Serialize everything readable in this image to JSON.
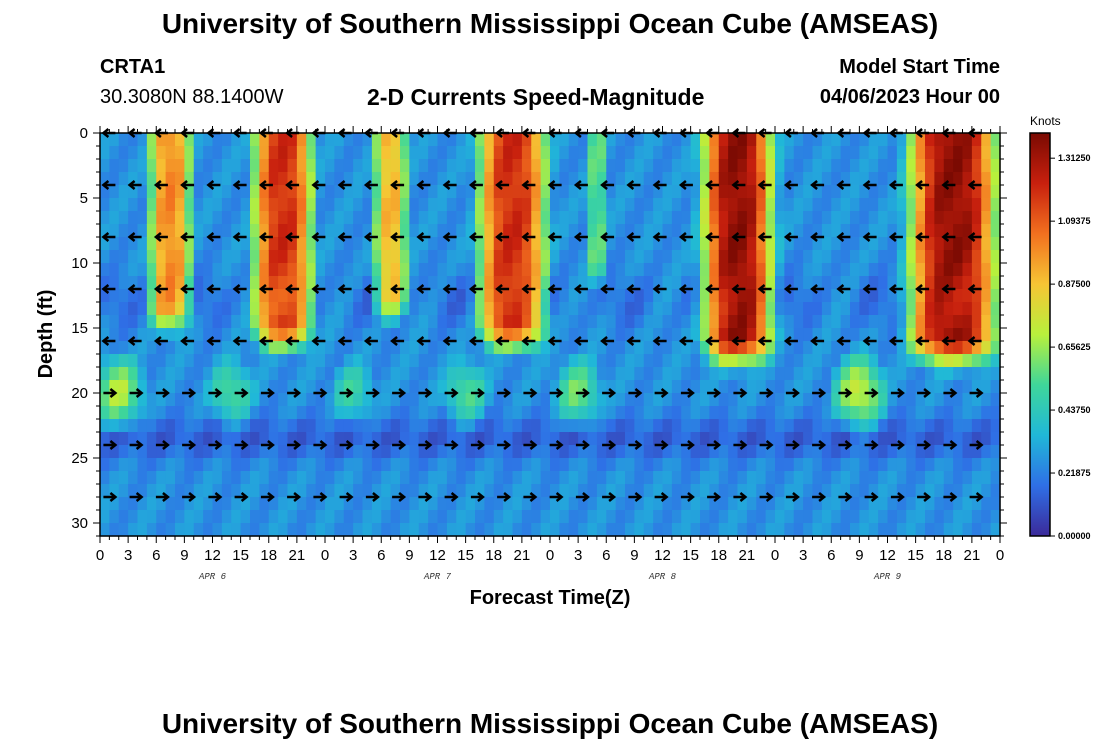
{
  "header": {
    "title": "University of Southern Mississippi Ocean Cube (AMSEAS)",
    "station": "CRTA1",
    "coords": "30.3080N  88.1400W",
    "subtitle": "2-D Currents Speed-Magnitude",
    "model_start_label": "Model Start Time",
    "model_start_value": "04/06/2023 Hour 00"
  },
  "footer": {
    "title": "University of Southern Mississippi Ocean Cube (AMSEAS)"
  },
  "colors": {
    "palette": [
      "#3b2a9a",
      "#2f6fe6",
      "#20b8d8",
      "#3fd69a",
      "#b8f03c",
      "#f6c534",
      "#f2701f",
      "#c8200e",
      "#7a0a02"
    ]
  },
  "chart_data": {
    "type": "heatmap",
    "title": "2-D Currents Speed-Magnitude",
    "xlabel": "Forecast Time(Z)",
    "ylabel": "Depth (ft)",
    "x_range_hours": [
      0,
      96
    ],
    "y_range_ft": [
      0,
      31
    ],
    "x_tick_labels": [
      "0",
      "3",
      "6",
      "9",
      "12",
      "15",
      "18",
      "21",
      "0",
      "3",
      "6",
      "9",
      "12",
      "15",
      "18",
      "21",
      "0",
      "3",
      "6",
      "9",
      "12",
      "15",
      "18",
      "21",
      "0",
      "3",
      "6",
      "9",
      "12",
      "15",
      "18",
      "21",
      "0"
    ],
    "y_tick_labels": [
      "0",
      "5",
      "10",
      "15",
      "20",
      "25",
      "30"
    ],
    "day_labels": [
      "APR 6",
      "APR 7",
      "APR 8",
      "APR 9"
    ],
    "colorbar": {
      "unit": "Knots",
      "range": [
        0.0,
        1.4
      ],
      "tick_labels": [
        "0.00000",
        "0.21875",
        "0.43750",
        "0.65625",
        "0.87500",
        "1.09375",
        "1.31250"
      ]
    },
    "depth_levels_ft": [
      0,
      4,
      8,
      12,
      16,
      20,
      24,
      28
    ],
    "surface_speed_peaks": [
      {
        "start_hour": 5,
        "end_hour": 10,
        "peak_knots": 1.0
      },
      {
        "start_hour": 16,
        "end_hour": 23,
        "peak_knots": 1.2
      },
      {
        "start_hour": 29,
        "end_hour": 33,
        "peak_knots": 0.9
      },
      {
        "start_hour": 40,
        "end_hour": 48,
        "peak_knots": 1.2
      },
      {
        "start_hour": 52,
        "end_hour": 54,
        "peak_knots": 0.55
      },
      {
        "start_hour": 64,
        "end_hour": 72,
        "peak_knots": 1.35
      },
      {
        "start_hour": 86,
        "end_hour": 96,
        "peak_knots": 1.35
      }
    ],
    "lower_layer_peaks": [
      {
        "hour": 2,
        "depth_ft": 20,
        "peak_knots": 0.7
      },
      {
        "hour": 14,
        "depth_ft": 20,
        "peak_knots": 0.55
      },
      {
        "hour": 27,
        "depth_ft": 20,
        "peak_knots": 0.5
      },
      {
        "hour": 39,
        "depth_ft": 20,
        "peak_knots": 0.55
      },
      {
        "hour": 51,
        "depth_ft": 20,
        "peak_knots": 0.6
      },
      {
        "hour": 81,
        "depth_ft": 20,
        "peak_knots": 0.75
      }
    ],
    "flow_direction_note": "Arrows point west above ~17 ft and east below ~19 ft"
  }
}
